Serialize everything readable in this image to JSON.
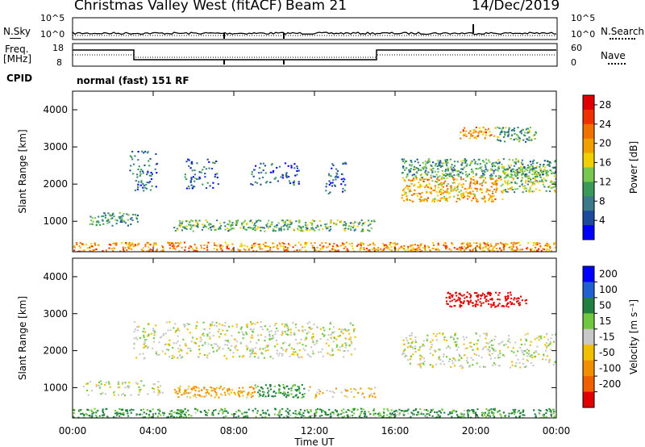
{
  "header": {
    "station": "Christmas Valley West (fitACF)",
    "beam": "Beam 21",
    "date": "14/Dec/2019"
  },
  "strip_labels": {
    "nsky": "N.Sky",
    "nsearch": "N.Search",
    "freq_line1": "Freq.",
    "freq_line2": "[MHz]",
    "nave": "Nave",
    "cpid": "CPID",
    "cpid_value": "normal (fast) 151 RF",
    "noise_ticks_left": [
      "10^5",
      "10^0"
    ],
    "noise_ticks_right": [
      "10^5",
      "10^0"
    ],
    "freq_ticks": [
      "18",
      "8"
    ],
    "nave_ticks": [
      "60",
      "0"
    ]
  },
  "colors": {
    "power_scale": [
      "#0000ff",
      "#1e4a9e",
      "#3a7a8a",
      "#3a9a5a",
      "#78c850",
      "#f0d000",
      "#f0a000",
      "#f07000",
      "#f03000",
      "#e00000"
    ],
    "velocity_scale": [
      "#0000ff",
      "#2060d0",
      "#208040",
      "#70c840",
      "#c8c8c8",
      "#f0c000",
      "#f09000",
      "#f06000",
      "#e00000"
    ]
  },
  "chart_data": [
    {
      "type": "heatmap",
      "panel": "power",
      "xlabel": "Time UT",
      "ylabel": "Slant Range [km]",
      "xlim": [
        0,
        24
      ],
      "ylim": [
        180,
        4500
      ],
      "x_ticks": [
        "00:00",
        "04:00",
        "08:00",
        "12:00",
        "16:00",
        "20:00",
        "00:00"
      ],
      "y_ticks": [
        "1000",
        "2000",
        "3000",
        "4000"
      ],
      "colorbar_label": "Power [dB]",
      "colorbar_ticks": [
        "4",
        "8",
        "12",
        "16",
        "20",
        "24",
        "28"
      ],
      "regions": [
        {
          "x0": 0.0,
          "x1": 24.0,
          "y0": 200,
          "y1": 450,
          "level": 22
        },
        {
          "x0": 0.8,
          "x1": 1.4,
          "y0": 900,
          "y1": 1150,
          "level": 10
        },
        {
          "x0": 1.4,
          "x1": 3.2,
          "y0": 900,
          "y1": 1250,
          "level": 10
        },
        {
          "x0": 5.0,
          "x1": 15.0,
          "y0": 750,
          "y1": 1050,
          "level": 12
        },
        {
          "x0": 16.3,
          "x1": 21.3,
          "y0": 1550,
          "y1": 2200,
          "level": 20
        },
        {
          "x0": 21.3,
          "x1": 24.0,
          "y0": 1800,
          "y1": 2500,
          "level": 14
        },
        {
          "x0": 16.3,
          "x1": 24.0,
          "y0": 2200,
          "y1": 2700,
          "level": 11
        },
        {
          "x0": 19.2,
          "x1": 21.0,
          "y0": 3250,
          "y1": 3550,
          "level": 22
        },
        {
          "x0": 21.0,
          "x1": 23.0,
          "y0": 3150,
          "y1": 3550,
          "level": 11
        },
        {
          "x0": 2.8,
          "x1": 4.2,
          "y0": 1800,
          "y1": 2900,
          "level": 7
        },
        {
          "x0": 5.5,
          "x1": 7.2,
          "y0": 1900,
          "y1": 2700,
          "level": 7
        },
        {
          "x0": 8.8,
          "x1": 11.2,
          "y0": 2000,
          "y1": 2600,
          "level": 7
        },
        {
          "x0": 12.5,
          "x1": 13.6,
          "y0": 1700,
          "y1": 2600,
          "level": 6
        }
      ]
    },
    {
      "type": "heatmap",
      "panel": "velocity",
      "xlabel": "Time UT",
      "ylabel": "Slant Range [km]",
      "xlim": [
        0,
        24
      ],
      "ylim": [
        180,
        4500
      ],
      "x_ticks": [
        "00:00",
        "04:00",
        "08:00",
        "12:00",
        "16:00",
        "20:00",
        "00:00"
      ],
      "y_ticks": [
        "1000",
        "2000",
        "3000",
        "4000"
      ],
      "colorbar_label": "Velocity [m s⁻¹]",
      "colorbar_ticks": [
        "200",
        "100",
        "50",
        "15",
        "-15",
        "-50",
        "-100",
        "-200"
      ],
      "regions": [
        {
          "x0": 0.0,
          "x1": 24.0,
          "y0": 200,
          "y1": 450,
          "level": 40
        },
        {
          "x0": 0.5,
          "x1": 4.5,
          "y0": 800,
          "y1": 1200,
          "level": 0
        },
        {
          "x0": 5.0,
          "x1": 9.0,
          "y0": 750,
          "y1": 1050,
          "level": -40
        },
        {
          "x0": 9.0,
          "x1": 11.5,
          "y0": 750,
          "y1": 1100,
          "level": 40
        },
        {
          "x0": 11.5,
          "x1": 15.0,
          "y0": 750,
          "y1": 1050,
          "level": -20
        },
        {
          "x0": 16.3,
          "x1": 24.0,
          "y0": 1550,
          "y1": 2500,
          "level": 0
        },
        {
          "x0": 18.5,
          "x1": 22.5,
          "y0": 3200,
          "y1": 3600,
          "level": -180
        },
        {
          "x0": 3.0,
          "x1": 14.0,
          "y0": 1800,
          "y1": 2800,
          "level": 0
        }
      ]
    }
  ]
}
